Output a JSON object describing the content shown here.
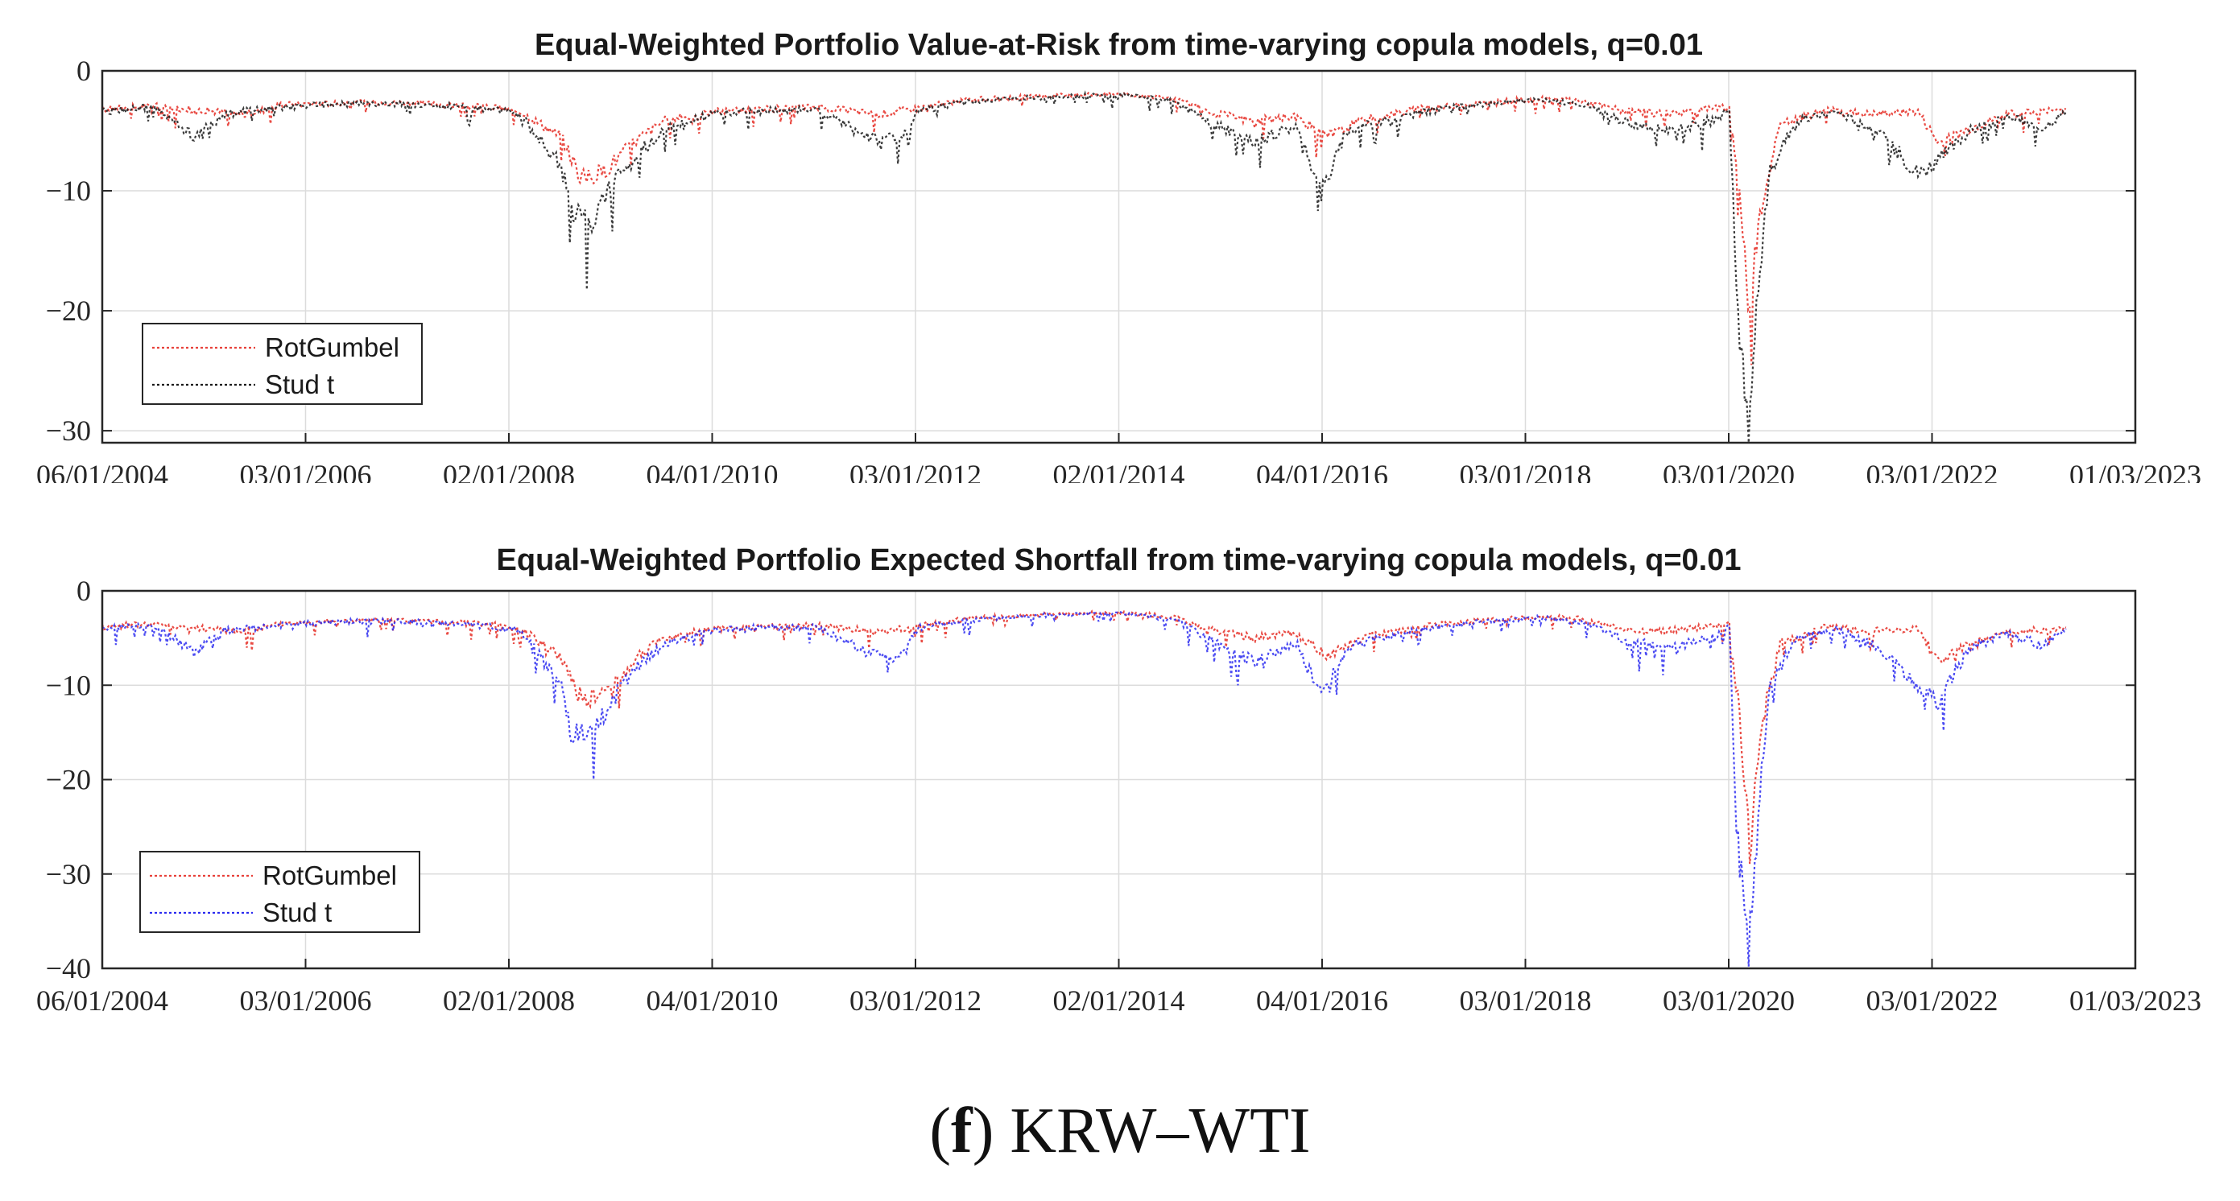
{
  "chart_data": [
    {
      "type": "line",
      "title": "Equal-Weighted Portfolio Value-at-Risk from time-varying copula models, q=0.01",
      "xlabel": "",
      "ylabel": "",
      "ylim": [
        -31,
        0
      ],
      "yticks": [
        0,
        -10,
        -20,
        -30
      ],
      "ytick_labels": [
        "0",
        "−10",
        "−20",
        "−30"
      ],
      "xlim": [
        "06/01/2004",
        "01/03/2023"
      ],
      "xtick_labels": [
        "06/01/2004",
        "03/01/2006",
        "02/01/2008",
        "04/01/2010",
        "03/01/2012",
        "02/01/2014",
        "04/01/2016",
        "03/01/2018",
        "03/01/2020",
        "03/01/2022",
        "01/03/2023"
      ],
      "grid": true,
      "legend": {
        "placement": "lower-left"
      },
      "series": [
        {
          "name": "RotGumbel",
          "color": "#e8413a",
          "style": "dotted",
          "points": [
            [
              2004.0,
              -3.2
            ],
            [
              2004.5,
              -2.9
            ],
            [
              2005.0,
              -3.3
            ],
            [
              2005.4,
              -3.6
            ],
            [
              2005.8,
              -2.8
            ],
            [
              2006.3,
              -2.7
            ],
            [
              2006.8,
              -2.6
            ],
            [
              2007.3,
              -2.8
            ],
            [
              2007.8,
              -3.0
            ],
            [
              2008.1,
              -3.4
            ],
            [
              2008.5,
              -5.5
            ],
            [
              2008.7,
              -9.0
            ],
            [
              2008.9,
              -8.5
            ],
            [
              2009.2,
              -6.0
            ],
            [
              2009.5,
              -4.2
            ],
            [
              2010.0,
              -3.4
            ],
            [
              2010.5,
              -3.2
            ],
            [
              2011.0,
              -3.0
            ],
            [
              2011.6,
              -3.6
            ],
            [
              2012.0,
              -3.1
            ],
            [
              2012.5,
              -2.4
            ],
            [
              2013.0,
              -2.2
            ],
            [
              2013.5,
              -2.0
            ],
            [
              2014.0,
              -1.9
            ],
            [
              2014.5,
              -2.3
            ],
            [
              2014.9,
              -3.5
            ],
            [
              2015.3,
              -4.2
            ],
            [
              2015.7,
              -3.8
            ],
            [
              2016.0,
              -5.5
            ],
            [
              2016.4,
              -4.0
            ],
            [
              2016.9,
              -3.2
            ],
            [
              2017.4,
              -2.8
            ],
            [
              2017.9,
              -2.4
            ],
            [
              2018.4,
              -2.3
            ],
            [
              2018.9,
              -3.3
            ],
            [
              2019.3,
              -3.6
            ],
            [
              2019.7,
              -3.2
            ],
            [
              2019.95,
              -3.0
            ],
            [
              2020.05,
              -10.0
            ],
            [
              2020.15,
              -20.0
            ],
            [
              2020.25,
              -12.0
            ],
            [
              2020.45,
              -4.5
            ],
            [
              2020.9,
              -3.2
            ],
            [
              2021.3,
              -3.6
            ],
            [
              2021.8,
              -3.4
            ],
            [
              2022.0,
              -6.0
            ],
            [
              2022.3,
              -4.8
            ],
            [
              2022.7,
              -3.6
            ],
            [
              2023.0,
              -3.4
            ],
            [
              2023.25,
              -3.2
            ]
          ]
        },
        {
          "name": "Stud t",
          "color": "#1a1a1a",
          "style": "dotted",
          "points": [
            [
              2004.0,
              -3.4
            ],
            [
              2004.5,
              -3.0
            ],
            [
              2004.9,
              -5.5
            ],
            [
              2005.2,
              -3.6
            ],
            [
              2005.8,
              -3.0
            ],
            [
              2006.3,
              -2.8
            ],
            [
              2006.8,
              -2.7
            ],
            [
              2007.3,
              -2.9
            ],
            [
              2007.8,
              -3.2
            ],
            [
              2008.1,
              -3.6
            ],
            [
              2008.5,
              -8.0
            ],
            [
              2008.6,
              -11.5
            ],
            [
              2008.8,
              -13.0
            ],
            [
              2009.0,
              -9.5
            ],
            [
              2009.3,
              -6.5
            ],
            [
              2009.6,
              -4.5
            ],
            [
              2010.0,
              -3.6
            ],
            [
              2010.5,
              -3.3
            ],
            [
              2011.0,
              -3.2
            ],
            [
              2011.5,
              -5.5
            ],
            [
              2011.8,
              -5.8
            ],
            [
              2012.0,
              -3.3
            ],
            [
              2012.5,
              -2.6
            ],
            [
              2013.0,
              -2.3
            ],
            [
              2013.5,
              -2.1
            ],
            [
              2014.0,
              -2.0
            ],
            [
              2014.5,
              -2.5
            ],
            [
              2014.9,
              -4.5
            ],
            [
              2015.3,
              -6.0
            ],
            [
              2015.7,
              -4.5
            ],
            [
              2015.95,
              -10.0
            ],
            [
              2016.2,
              -5.0
            ],
            [
              2016.6,
              -4.0
            ],
            [
              2017.1,
              -3.2
            ],
            [
              2017.6,
              -2.7
            ],
            [
              2018.1,
              -2.4
            ],
            [
              2018.6,
              -3.0
            ],
            [
              2019.0,
              -4.5
            ],
            [
              2019.4,
              -5.0
            ],
            [
              2019.8,
              -4.0
            ],
            [
              2019.95,
              -3.0
            ],
            [
              2020.02,
              -18.0
            ],
            [
              2020.1,
              -27.0
            ],
            [
              2020.14,
              -31.0
            ],
            [
              2020.2,
              -22.0
            ],
            [
              2020.35,
              -8.0
            ],
            [
              2020.6,
              -4.2
            ],
            [
              2021.0,
              -3.4
            ],
            [
              2021.4,
              -5.0
            ],
            [
              2021.8,
              -8.5
            ],
            [
              2022.0,
              -7.5
            ],
            [
              2022.3,
              -5.0
            ],
            [
              2022.7,
              -3.8
            ],
            [
              2023.0,
              -4.8
            ],
            [
              2023.25,
              -3.4
            ]
          ]
        }
      ]
    },
    {
      "type": "line",
      "title": "Equal-Weighted Portfolio Expected Shortfall from time-varying copula models, q=0.01",
      "xlabel": "",
      "ylabel": "",
      "ylim": [
        -40,
        0
      ],
      "yticks": [
        0,
        -10,
        -20,
        -30,
        -40
      ],
      "ytick_labels": [
        "0",
        "−10",
        "−20",
        "−30",
        "−40"
      ],
      "xlim": [
        "06/01/2004",
        "01/03/2023"
      ],
      "xtick_labels": [
        "06/01/2004",
        "03/01/2006",
        "02/01/2008",
        "04/01/2010",
        "03/01/2012",
        "02/01/2014",
        "04/01/2016",
        "03/01/2018",
        "03/01/2020",
        "03/01/2022",
        "01/03/2023"
      ],
      "grid": true,
      "legend": {
        "placement": "lower-left"
      },
      "series": [
        {
          "name": "RotGumbel",
          "color": "#e8413a",
          "style": "dotted",
          "points": [
            [
              2004.0,
              -3.8
            ],
            [
              2004.5,
              -3.5
            ],
            [
              2005.0,
              -4.0
            ],
            [
              2005.4,
              -4.3
            ],
            [
              2005.8,
              -3.4
            ],
            [
              2006.3,
              -3.2
            ],
            [
              2006.8,
              -3.1
            ],
            [
              2007.3,
              -3.3
            ],
            [
              2007.8,
              -3.6
            ],
            [
              2008.1,
              -4.0
            ],
            [
              2008.5,
              -7.0
            ],
            [
              2008.7,
              -11.5
            ],
            [
              2008.9,
              -11.0
            ],
            [
              2009.2,
              -7.5
            ],
            [
              2009.5,
              -5.0
            ],
            [
              2010.0,
              -4.0
            ],
            [
              2010.5,
              -3.8
            ],
            [
              2011.0,
              -3.6
            ],
            [
              2011.6,
              -4.4
            ],
            [
              2012.0,
              -3.7
            ],
            [
              2012.5,
              -2.9
            ],
            [
              2013.0,
              -2.6
            ],
            [
              2013.5,
              -2.4
            ],
            [
              2014.0,
              -2.3
            ],
            [
              2014.5,
              -2.8
            ],
            [
              2014.9,
              -4.2
            ],
            [
              2015.3,
              -5.0
            ],
            [
              2015.7,
              -4.5
            ],
            [
              2016.0,
              -6.8
            ],
            [
              2016.4,
              -4.8
            ],
            [
              2016.9,
              -3.8
            ],
            [
              2017.4,
              -3.3
            ],
            [
              2017.9,
              -2.9
            ],
            [
              2018.4,
              -2.8
            ],
            [
              2018.9,
              -4.0
            ],
            [
              2019.3,
              -4.3
            ],
            [
              2019.7,
              -3.8
            ],
            [
              2019.95,
              -3.5
            ],
            [
              2020.05,
              -13.0
            ],
            [
              2020.15,
              -27.0
            ],
            [
              2020.25,
              -15.0
            ],
            [
              2020.45,
              -5.5
            ],
            [
              2020.9,
              -3.8
            ],
            [
              2021.3,
              -4.3
            ],
            [
              2021.8,
              -4.0
            ],
            [
              2022.0,
              -7.5
            ],
            [
              2022.3,
              -5.8
            ],
            [
              2022.7,
              -4.3
            ],
            [
              2023.0,
              -4.1
            ],
            [
              2023.25,
              -3.9
            ]
          ]
        },
        {
          "name": "Stud t",
          "color": "#2b2bf0",
          "style": "dotted",
          "points": [
            [
              2004.0,
              -4.0
            ],
            [
              2004.5,
              -3.6
            ],
            [
              2004.9,
              -6.5
            ],
            [
              2005.2,
              -4.2
            ],
            [
              2005.8,
              -3.6
            ],
            [
              2006.3,
              -3.3
            ],
            [
              2006.8,
              -3.2
            ],
            [
              2007.3,
              -3.4
            ],
            [
              2007.8,
              -3.8
            ],
            [
              2008.1,
              -4.2
            ],
            [
              2008.5,
              -10.0
            ],
            [
              2008.6,
              -15.0
            ],
            [
              2008.8,
              -15.5
            ],
            [
              2009.0,
              -11.5
            ],
            [
              2009.3,
              -7.5
            ],
            [
              2009.6,
              -5.2
            ],
            [
              2010.0,
              -4.2
            ],
            [
              2010.5,
              -3.9
            ],
            [
              2011.0,
              -3.8
            ],
            [
              2011.5,
              -6.5
            ],
            [
              2011.8,
              -7.0
            ],
            [
              2012.0,
              -3.9
            ],
            [
              2012.5,
              -3.1
            ],
            [
              2013.0,
              -2.7
            ],
            [
              2013.5,
              -2.5
            ],
            [
              2014.0,
              -2.4
            ],
            [
              2014.5,
              -3.0
            ],
            [
              2014.9,
              -5.5
            ],
            [
              2015.3,
              -7.5
            ],
            [
              2015.7,
              -5.5
            ],
            [
              2015.95,
              -11.0
            ],
            [
              2016.2,
              -6.0
            ],
            [
              2016.6,
              -4.8
            ],
            [
              2017.1,
              -3.8
            ],
            [
              2017.6,
              -3.2
            ],
            [
              2018.1,
              -2.8
            ],
            [
              2018.6,
              -3.6
            ],
            [
              2019.0,
              -5.5
            ],
            [
              2019.4,
              -6.0
            ],
            [
              2019.8,
              -4.8
            ],
            [
              2019.95,
              -3.6
            ],
            [
              2020.02,
              -24.0
            ],
            [
              2020.1,
              -34.0
            ],
            [
              2020.14,
              -39.0
            ],
            [
              2020.2,
              -28.0
            ],
            [
              2020.35,
              -10.0
            ],
            [
              2020.6,
              -5.0
            ],
            [
              2021.0,
              -4.0
            ],
            [
              2021.4,
              -6.0
            ],
            [
              2021.8,
              -10.0
            ],
            [
              2022.0,
              -12.0
            ],
            [
              2022.3,
              -6.0
            ],
            [
              2022.7,
              -4.5
            ],
            [
              2023.0,
              -5.8
            ],
            [
              2023.25,
              -4.0
            ]
          ]
        }
      ]
    }
  ],
  "caption": {
    "label": "f",
    "text": "KRW–WTI"
  }
}
